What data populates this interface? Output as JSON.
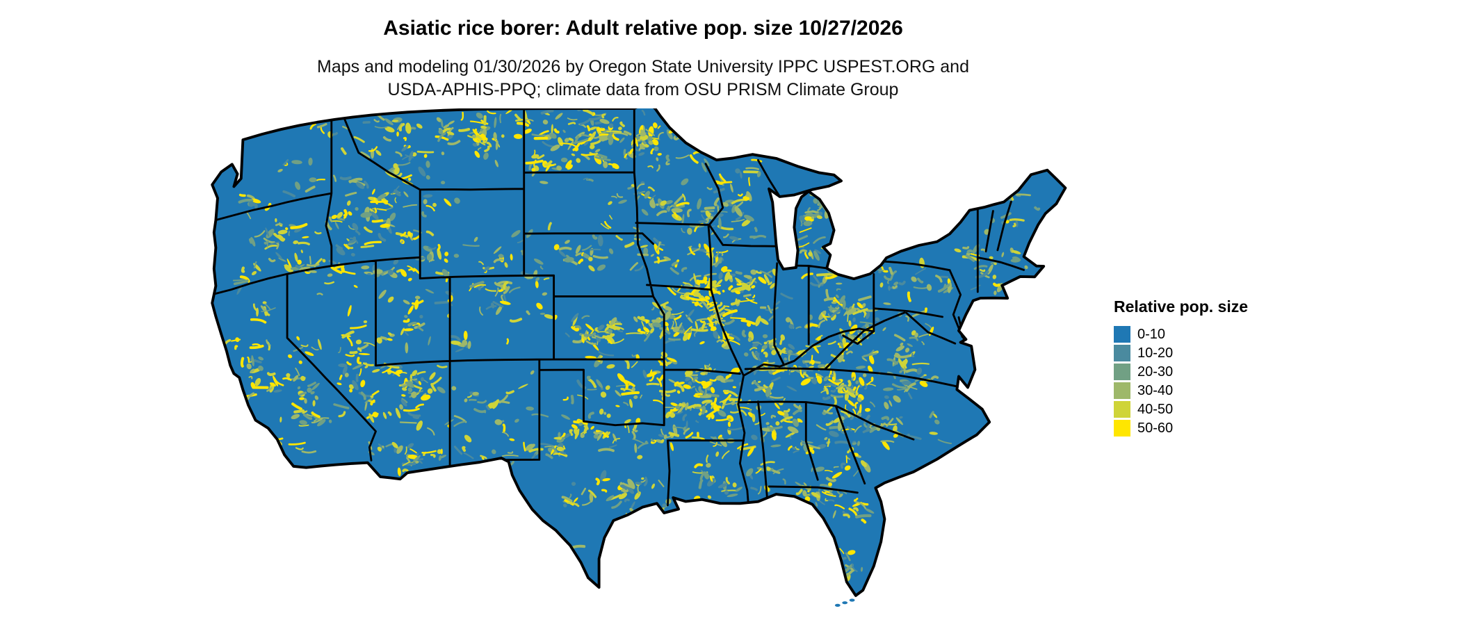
{
  "header": {
    "title": "Asiatic rice borer: Adult relative pop. size 10/27/2026",
    "subtitle_line1": "Maps and modeling 01/30/2026 by Oregon State University IPPC USPEST.ORG and",
    "subtitle_line2": "USDA-APHIS-PPQ; climate data from OSU PRISM Climate Group"
  },
  "legend": {
    "title": "Relative pop. size",
    "items": [
      {
        "label": "0-10",
        "color": "#1f78b4"
      },
      {
        "label": "10-20",
        "color": "#4a8a9f"
      },
      {
        "label": "20-30",
        "color": "#71a084"
      },
      {
        "label": "30-40",
        "color": "#9eb86a"
      },
      {
        "label": "40-50",
        "color": "#cfd438"
      },
      {
        "label": "50-60",
        "color": "#ffe600"
      }
    ]
  },
  "map": {
    "base_color": "#1f78b4",
    "border_color": "#000000",
    "background_color": "#ffffff"
  }
}
